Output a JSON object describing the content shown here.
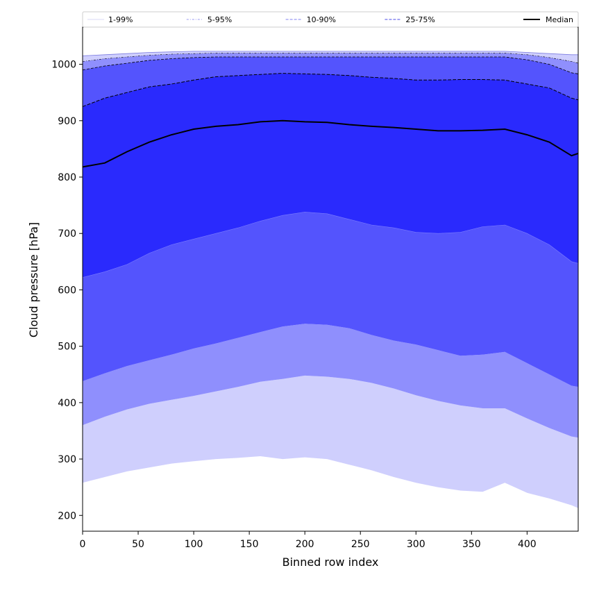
{
  "chart_data": {
    "type": "area",
    "title": "",
    "xlabel": "Binned row index",
    "ylabel": "Cloud pressure [hPa]",
    "xlim": [
      0,
      446
    ],
    "ylim": [
      172,
      1066
    ],
    "xticks": [
      0,
      50,
      100,
      150,
      200,
      250,
      300,
      350,
      400
    ],
    "yticks": [
      200,
      300,
      400,
      500,
      600,
      700,
      800,
      900,
      1000
    ],
    "grid": false,
    "legend": {
      "placement": "top",
      "entries": [
        {
          "label": "1-99%",
          "style": "solid",
          "color": "#d9d9f5"
        },
        {
          "label": "5-95%",
          "style": "dashdot",
          "color": "#9a9af0"
        },
        {
          "label": "10-90%",
          "style": "dashed",
          "color": "#8080f0"
        },
        {
          "label": "25-75%",
          "style": "dashed",
          "color": "#4a4ae8"
        },
        {
          "label": "Median",
          "style": "solid",
          "color": "#000000"
        }
      ]
    },
    "x": [
      0,
      20,
      40,
      60,
      80,
      100,
      120,
      140,
      160,
      180,
      200,
      220,
      240,
      260,
      280,
      300,
      320,
      340,
      360,
      380,
      400,
      420,
      440,
      446
    ],
    "bands": [
      {
        "name": "1-99%",
        "fill": "#cfcffd",
        "lower": [
          258,
          268,
          278,
          285,
          292,
          296,
          300,
          302,
          305,
          300,
          303,
          300,
          290,
          280,
          268,
          258,
          250,
          244,
          242,
          258,
          240,
          230,
          218,
          213
        ],
        "upper": [
          1015,
          1017,
          1019,
          1021,
          1022,
          1023,
          1023,
          1023,
          1023,
          1023,
          1023,
          1023,
          1023,
          1023,
          1023,
          1023,
          1023,
          1023,
          1023,
          1023,
          1021,
          1019,
          1017,
          1017
        ]
      },
      {
        "name": "5-95%",
        "fill": "#8f8ffd",
        "lower": [
          360,
          375,
          388,
          398,
          405,
          412,
          420,
          428,
          437,
          442,
          448,
          446,
          442,
          435,
          425,
          413,
          403,
          395,
          390,
          390,
          372,
          355,
          340,
          338
        ],
        "upper": [
          1005,
          1010,
          1013,
          1016,
          1018,
          1019,
          1020,
          1020,
          1020,
          1020,
          1020,
          1020,
          1020,
          1020,
          1020,
          1020,
          1020,
          1020,
          1020,
          1020,
          1017,
          1012,
          1005,
          1002
        ]
      },
      {
        "name": "10-90%",
        "fill": "#5454fd",
        "lower": [
          438,
          452,
          465,
          475,
          485,
          496,
          505,
          515,
          525,
          535,
          540,
          538,
          532,
          520,
          510,
          503,
          493,
          483,
          485,
          490,
          470,
          450,
          430,
          428
        ]
      },
      {
        "name": "25-75%",
        "fill": "#2a2afd",
        "lower": [
          622,
          632,
          645,
          665,
          680,
          690,
          700,
          710,
          722,
          732,
          738,
          735,
          725,
          715,
          710,
          702,
          700,
          702,
          712,
          715,
          700,
          680,
          650,
          647
        ],
        "upper": [
          925,
          940,
          950,
          960,
          965,
          972,
          978,
          980,
          982,
          984,
          983,
          982,
          980,
          977,
          975,
          972,
          972,
          973,
          973,
          972,
          965,
          958,
          940,
          937
        ]
      }
    ],
    "outer_10_90_upper": [
      990,
      997,
      1002,
      1007,
      1010,
      1012,
      1013,
      1013,
      1013,
      1013,
      1013,
      1013,
      1013,
      1013,
      1013,
      1013,
      1013,
      1013,
      1013,
      1013,
      1008,
      1000,
      985,
      983
    ],
    "series": [
      {
        "name": "Median",
        "color": "#000000",
        "values": [
          818,
          825,
          845,
          862,
          875,
          885,
          890,
          893,
          898,
          900,
          898,
          897,
          893,
          890,
          888,
          885,
          882,
          882,
          883,
          885,
          875,
          862,
          838,
          842
        ]
      }
    ]
  }
}
